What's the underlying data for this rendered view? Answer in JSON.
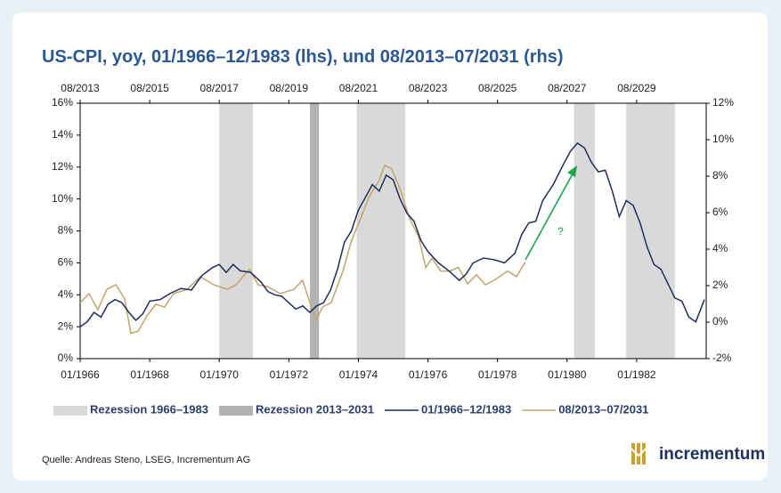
{
  "chart_data": {
    "type": "line",
    "title": "US-CPI, yoy, 01/1966–12/1983 (lhs), und 08/2013–07/2031 (rhs)",
    "annotation": "?",
    "xlim": [
      1966,
      1984
    ],
    "xticks": [
      {
        "value": 1966,
        "label": "01/1966"
      },
      {
        "value": 1968,
        "label": "01/1968"
      },
      {
        "value": 1970,
        "label": "01/1970"
      },
      {
        "value": 1972,
        "label": "01/1972"
      },
      {
        "value": 1974,
        "label": "01/1974"
      },
      {
        "value": 1976,
        "label": "01/1976"
      },
      {
        "value": 1978,
        "label": "01/1978"
      },
      {
        "value": 1980,
        "label": "01/1980"
      },
      {
        "value": 1982,
        "label": "01/1982"
      }
    ],
    "x2lim": [
      2013.583,
      2031.583
    ],
    "x2ticks": [
      {
        "value": 2013.583,
        "label": "08/2013"
      },
      {
        "value": 2015.583,
        "label": "08/2015"
      },
      {
        "value": 2017.583,
        "label": "08/2017"
      },
      {
        "value": 2019.583,
        "label": "08/2019"
      },
      {
        "value": 2021.583,
        "label": "08/2021"
      },
      {
        "value": 2023.583,
        "label": "08/2023"
      },
      {
        "value": 2025.583,
        "label": "08/2025"
      },
      {
        "value": 2027.583,
        "label": "08/2027"
      },
      {
        "value": 2029.583,
        "label": "08/2029"
      }
    ],
    "ylim": [
      0,
      16
    ],
    "yticks": [
      {
        "value": 0,
        "label": "0%"
      },
      {
        "value": 2,
        "label": "2%"
      },
      {
        "value": 4,
        "label": "4%"
      },
      {
        "value": 6,
        "label": "6%"
      },
      {
        "value": 8,
        "label": "8%"
      },
      {
        "value": 10,
        "label": "10%"
      },
      {
        "value": 12,
        "label": "12%"
      },
      {
        "value": 14,
        "label": "14%"
      },
      {
        "value": 16,
        "label": "16%"
      }
    ],
    "y2lim": [
      -2,
      12
    ],
    "y2ticks": [
      {
        "value": -2,
        "label": "-2%"
      },
      {
        "value": 0,
        "label": "0%"
      },
      {
        "value": 2,
        "label": "2%"
      },
      {
        "value": 4,
        "label": "4%"
      },
      {
        "value": 6,
        "label": "6%"
      },
      {
        "value": 8,
        "label": "8%"
      },
      {
        "value": 10,
        "label": "10%"
      },
      {
        "value": 12,
        "label": "12%"
      }
    ],
    "recessions": [
      {
        "name": "Rezession 1966–1983",
        "color": "#d9d9d9",
        "spans": [
          [
            1970.0,
            1970.97
          ],
          [
            1973.95,
            1975.35
          ],
          [
            1980.2,
            1980.8
          ],
          [
            1981.7,
            1983.1
          ]
        ]
      },
      {
        "name": "Rezession 2013–2031",
        "color": "#b3b3b3",
        "axis": "x2",
        "spans": [
          [
            2020.19,
            2020.45
          ]
        ]
      }
    ],
    "series": [
      {
        "name": "01/1966–12/1983",
        "color": "#1f2d5c",
        "x": [
          1966.0,
          1966.2,
          1966.4,
          1966.6,
          1966.8,
          1967.0,
          1967.2,
          1967.4,
          1967.6,
          1967.8,
          1968.0,
          1968.3,
          1968.6,
          1968.9,
          1969.2,
          1969.5,
          1969.8,
          1970.0,
          1970.2,
          1970.4,
          1970.6,
          1970.9,
          1971.2,
          1971.4,
          1971.6,
          1971.8,
          1972.0,
          1972.2,
          1972.4,
          1972.6,
          1972.8,
          1973.0,
          1973.2,
          1973.4,
          1973.6,
          1973.8,
          1974.0,
          1974.2,
          1974.4,
          1974.6,
          1974.8,
          1975.0,
          1975.2,
          1975.4,
          1975.6,
          1975.8,
          1976.0,
          1976.3,
          1976.6,
          1976.9,
          1977.1,
          1977.3,
          1977.6,
          1977.9,
          1978.2,
          1978.5,
          1978.7,
          1978.9,
          1979.1,
          1979.3,
          1979.6,
          1979.9,
          1980.1,
          1980.3,
          1980.5,
          1980.7,
          1980.9,
          1981.1,
          1981.3,
          1981.5,
          1981.7,
          1981.9,
          1982.1,
          1982.3,
          1982.5,
          1982.7,
          1982.9,
          1983.1,
          1983.3,
          1983.5,
          1983.7,
          1983.95
        ],
        "values": [
          2.0,
          2.3,
          2.9,
          2.6,
          3.4,
          3.7,
          3.5,
          2.9,
          2.4,
          2.8,
          3.6,
          3.7,
          4.1,
          4.4,
          4.3,
          5.2,
          5.7,
          5.9,
          5.4,
          5.9,
          5.5,
          5.4,
          4.8,
          4.2,
          4.0,
          3.9,
          3.5,
          3.1,
          3.3,
          2.9,
          3.3,
          3.5,
          4.3,
          5.6,
          7.3,
          8.0,
          9.3,
          10.1,
          10.9,
          10.5,
          11.5,
          11.2,
          10.0,
          9.1,
          8.6,
          7.4,
          6.7,
          6.0,
          5.5,
          4.9,
          5.3,
          6.0,
          6.3,
          6.2,
          6.0,
          6.6,
          7.8,
          8.5,
          8.6,
          9.9,
          10.9,
          12.2,
          13.0,
          13.5,
          13.2,
          12.3,
          11.7,
          11.8,
          10.5,
          8.9,
          9.9,
          9.6,
          8.5,
          7.0,
          5.9,
          5.6,
          4.7,
          3.8,
          3.6,
          2.6,
          2.3,
          3.7
        ]
      },
      {
        "name": "08/2013–07/2031",
        "color": "#c2a56b",
        "axis": "y2",
        "xaxis": "x2",
        "x": [
          2013.58,
          2013.84,
          2014.09,
          2014.35,
          2014.61,
          2014.86,
          2015.04,
          2015.25,
          2015.5,
          2015.76,
          2016.01,
          2016.27,
          2016.66,
          2017.04,
          2017.42,
          2017.81,
          2018.06,
          2018.45,
          2018.7,
          2018.96,
          2019.34,
          2019.73,
          2019.98,
          2020.19,
          2020.37,
          2020.55,
          2020.8,
          2021.14,
          2021.39,
          2021.65,
          2021.9,
          2022.16,
          2022.34,
          2022.54,
          2022.8,
          2023.05,
          2023.31,
          2023.52,
          2023.7,
          2023.95,
          2024.21,
          2024.46,
          2024.72,
          2024.98,
          2025.23,
          2025.49,
          2025.87,
          2026.13,
          2026.38
        ],
        "values": [
          1.07,
          1.56,
          0.68,
          1.8,
          2.05,
          1.3,
          -0.6,
          -0.5,
          0.34,
          0.98,
          0.83,
          1.56,
          1.8,
          2.5,
          2.05,
          1.8,
          2.05,
          2.9,
          2.05,
          1.95,
          1.56,
          1.8,
          2.3,
          1.07,
          0.1,
          0.83,
          1.07,
          2.8,
          4.5,
          5.7,
          6.9,
          7.7,
          8.6,
          8.4,
          7.2,
          5.7,
          4.7,
          3.0,
          3.5,
          2.8,
          2.8,
          3.0,
          2.1,
          2.6,
          2.05,
          2.3,
          2.8,
          2.5,
          3.3
        ]
      }
    ]
  },
  "source": "Quelle: Andreas Steno, LSEG, Incrementum AG",
  "logo": "incrementum"
}
